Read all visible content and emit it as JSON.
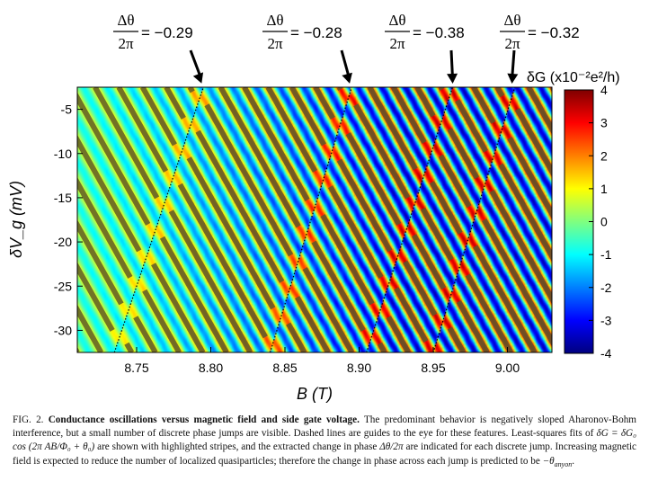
{
  "chart_data": {
    "type": "heatmap",
    "title": "",
    "xlabel": "B (T)",
    "ylabel": "δV_g (mV)",
    "xlim": [
      8.71,
      9.03
    ],
    "ylim": [
      -32.5,
      -2.5
    ],
    "x_ticks": [
      8.75,
      8.8,
      8.85,
      8.9,
      8.95,
      9.0
    ],
    "x_tick_labels": [
      "8.75",
      "8.80",
      "8.85",
      "8.90",
      "8.95",
      "9.00"
    ],
    "y_ticks": [
      -5,
      -10,
      -15,
      -20,
      -25,
      -30
    ],
    "y_tick_labels": [
      "-5",
      "-10",
      "-15",
      "-20",
      "-25",
      "-30"
    ],
    "colorbar": {
      "label": "δG (x10⁻²e²/h)",
      "range": [
        -4,
        4
      ],
      "ticks": [
        4,
        3,
        2,
        1,
        0,
        -1,
        -2,
        -3,
        -4
      ],
      "tick_labels": [
        "4",
        "3",
        "2",
        "1",
        "0",
        "-1",
        "-2",
        "-3",
        "-4"
      ],
      "colormap": "jet",
      "colors": [
        "#00007f",
        "#0000ff",
        "#00ffff",
        "#ffff00",
        "#ff0000",
        "#7f0000"
      ]
    },
    "stripe_slope_mV_per_T": -300,
    "stripe_period_T": 0.016,
    "phase_jumps": [
      {
        "B_at_top": 8.795,
        "B_at_bottom": 8.735,
        "label": "= −0.29",
        "value": -0.29
      },
      {
        "B_at_top": 8.895,
        "B_at_bottom": 8.84,
        "label": "= −0.28",
        "value": -0.28
      },
      {
        "B_at_top": 8.963,
        "B_at_bottom": 8.905,
        "label": "= −0.38",
        "value": -0.38
      },
      {
        "B_at_top": 9.005,
        "B_at_bottom": 8.95,
        "label": "= −0.32",
        "value": -0.32
      }
    ],
    "annotation_fraction": {
      "numerator": "Δθ",
      "denominator": "2π"
    }
  },
  "caption": {
    "label": "FIG. 2.",
    "title": "Conductance oscillations versus magnetic field and side gate voltage.",
    "text1": "The predominant behavior is negatively sloped Aharonov-Bohm interference, but a small number of discrete phase jumps are visible. Dashed lines are guides to the eye for these features. Least-squares fits of",
    "formula1": "δG = δG₀ cos (2π AB/Φ₀ + θ₀)",
    "text2": "are shown with highlighted stripes, and the extracted change in phase",
    "formula2": "Δθ/2π",
    "text3": "are indicated for each discrete jump. Increasing magnetic field is expected to reduce the number of localized quasiparticles; therefore the change in phase across each jump is predicted to be",
    "formula3": "−θ",
    "formula3_sub": "anyon",
    "text4": "."
  },
  "colors": {
    "stripe": "#5a5a2a",
    "text": "#111111",
    "background": "#ffffff"
  }
}
